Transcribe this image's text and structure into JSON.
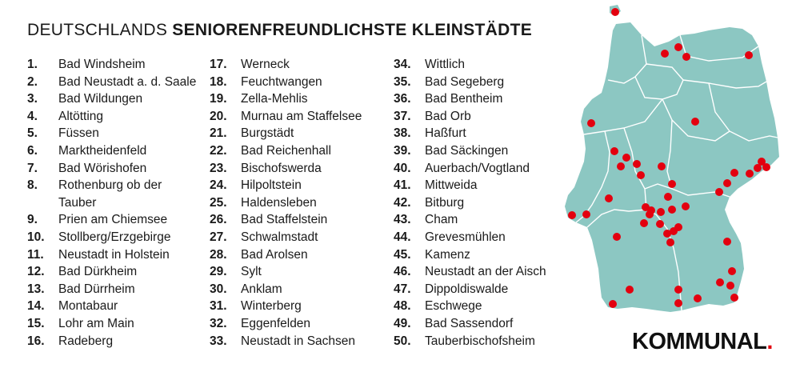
{
  "title": {
    "light": "DEUTSCHLANDS",
    "bold": "SENIORENFREUNDLICHSTE KLEINSTÄDTE"
  },
  "ranking": [
    {
      "rank": "1.",
      "name": "Bad Windsheim"
    },
    {
      "rank": "2.",
      "name": "Bad Neustadt a. d. Saale"
    },
    {
      "rank": "3.",
      "name": "Bad Wildungen"
    },
    {
      "rank": "4.",
      "name": "Altötting"
    },
    {
      "rank": "5.",
      "name": "Füssen"
    },
    {
      "rank": "6.",
      "name": "Marktheidenfeld"
    },
    {
      "rank": "7.",
      "name": "Bad Wörishofen"
    },
    {
      "rank": "8.",
      "name": "Rothenburg ob der Tauber"
    },
    {
      "rank": "9.",
      "name": "Prien am Chiemsee"
    },
    {
      "rank": "10.",
      "name": "Stollberg/Erzgebirge"
    },
    {
      "rank": "11.",
      "name": "Neustadt in Holstein"
    },
    {
      "rank": "12.",
      "name": "Bad Dürkheim"
    },
    {
      "rank": "13.",
      "name": "Bad Dürrheim"
    },
    {
      "rank": "14.",
      "name": "Montabaur"
    },
    {
      "rank": "15.",
      "name": "Lohr am Main"
    },
    {
      "rank": "16.",
      "name": "Radeberg"
    },
    {
      "rank": "17.",
      "name": "Werneck"
    },
    {
      "rank": "18.",
      "name": "Feuchtwangen"
    },
    {
      "rank": "19.",
      "name": "Zella-Mehlis"
    },
    {
      "rank": "20.",
      "name": "Murnau am Staffelsee"
    },
    {
      "rank": "21.",
      "name": "Burgstädt"
    },
    {
      "rank": "22.",
      "name": "Bad Reichenhall"
    },
    {
      "rank": "23.",
      "name": "Bischofswerda"
    },
    {
      "rank": "24.",
      "name": "Hilpoltstein"
    },
    {
      "rank": "25.",
      "name": "Haldensleben"
    },
    {
      "rank": "26.",
      "name": "Bad Staffelstein"
    },
    {
      "rank": "27.",
      "name": "Schwalmstadt"
    },
    {
      "rank": "28.",
      "name": "Bad Arolsen"
    },
    {
      "rank": "29.",
      "name": "Sylt"
    },
    {
      "rank": "30.",
      "name": "Anklam"
    },
    {
      "rank": "31.",
      "name": "Winterberg"
    },
    {
      "rank": "32.",
      "name": "Eggenfelden"
    },
    {
      "rank": "33.",
      "name": "Neustadt in Sachsen"
    },
    {
      "rank": "34.",
      "name": "Wittlich"
    },
    {
      "rank": "35.",
      "name": "Bad Segeberg"
    },
    {
      "rank": "36.",
      "name": "Bad Bentheim"
    },
    {
      "rank": "37.",
      "name": "Bad Orb"
    },
    {
      "rank": "38.",
      "name": "Haßfurt"
    },
    {
      "rank": "39.",
      "name": "Bad Säckingen"
    },
    {
      "rank": "40.",
      "name": "Auerbach/Vogtland"
    },
    {
      "rank": "41.",
      "name": "Mittweida"
    },
    {
      "rank": "42.",
      "name": "Bitburg"
    },
    {
      "rank": "43.",
      "name": "Cham"
    },
    {
      "rank": "44.",
      "name": "Grevesmühlen"
    },
    {
      "rank": "45.",
      "name": "Kamenz"
    },
    {
      "rank": "46.",
      "name": "Neustadt an der Aisch"
    },
    {
      "rank": "47.",
      "name": "Dippoldiswalde"
    },
    {
      "rank": "48.",
      "name": "Eschwege"
    },
    {
      "rank": "49.",
      "name": "Bad Sassendorf"
    },
    {
      "rank": "50.",
      "name": "Tauberbischofsheim"
    }
  ],
  "logo": {
    "text": "KOMMUNAL",
    "dot": "."
  },
  "colors": {
    "map_fill": "#8cc7c2",
    "map_border": "#ffffff",
    "marker": "#e3000f",
    "logo_accent": "#e3000f"
  }
}
